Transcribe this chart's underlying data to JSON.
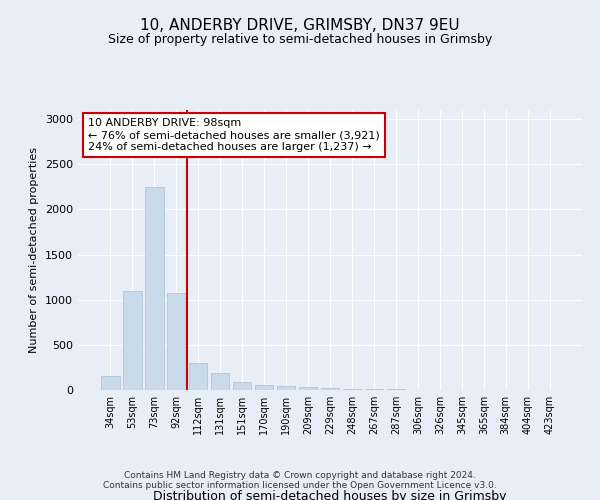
{
  "title": "10, ANDERBY DRIVE, GRIMSBY, DN37 9EU",
  "subtitle": "Size of property relative to semi-detached houses in Grimsby",
  "xlabel": "Distribution of semi-detached houses by size in Grimsby",
  "ylabel": "Number of semi-detached properties",
  "categories": [
    "34sqm",
    "53sqm",
    "73sqm",
    "92sqm",
    "112sqm",
    "131sqm",
    "151sqm",
    "170sqm",
    "190sqm",
    "209sqm",
    "229sqm",
    "248sqm",
    "267sqm",
    "287sqm",
    "306sqm",
    "326sqm",
    "345sqm",
    "365sqm",
    "384sqm",
    "404sqm",
    "423sqm"
  ],
  "values": [
    150,
    1100,
    2250,
    1075,
    300,
    185,
    90,
    55,
    45,
    30,
    20,
    15,
    10,
    8,
    5,
    3,
    2,
    2,
    1,
    1,
    0
  ],
  "bar_color": "#c9daea",
  "bar_edge_color": "#a8c0d6",
  "vline_x": 3.5,
  "vline_color": "#cc0000",
  "annotation_text": "10 ANDERBY DRIVE: 98sqm\n← 76% of semi-detached houses are smaller (3,921)\n24% of semi-detached houses are larger (1,237) →",
  "annotation_box_color": "#ffffff",
  "annotation_box_edge": "#cc0000",
  "ylim": [
    0,
    3100
  ],
  "yticks": [
    0,
    500,
    1000,
    1500,
    2000,
    2500,
    3000
  ],
  "footer": "Contains HM Land Registry data © Crown copyright and database right 2024.\nContains public sector information licensed under the Open Government Licence v3.0.",
  "bg_color": "#e8eef8",
  "plot_bg_color": "#e8eef8"
}
